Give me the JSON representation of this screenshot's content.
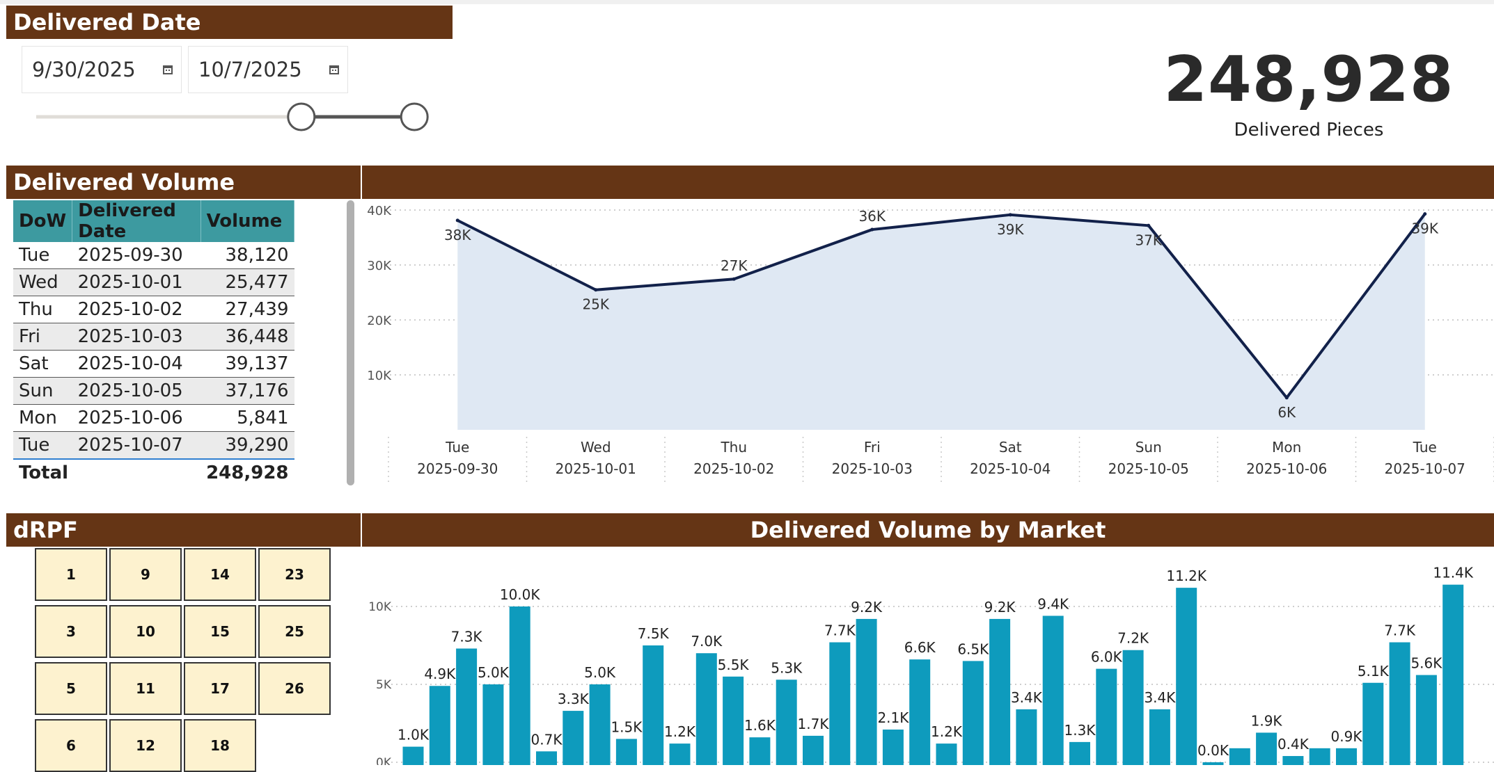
{
  "date_filter": {
    "header": "Delivered Date",
    "start": "9/30/2025",
    "end": "10/7/2025",
    "calendar_icon": "calendar-icon",
    "slider_start_fraction": 0.68,
    "slider_end_fraction": 0.97
  },
  "kpi": {
    "value": "248,928",
    "label": "Delivered Pieces"
  },
  "volume_section": {
    "header": "Delivered Volume"
  },
  "volume_table": {
    "columns": [
      "DoW",
      "Delivered Date",
      "Volume"
    ],
    "rows": [
      {
        "dow": "Tue",
        "date": "2025-09-30",
        "volume": "38,120"
      },
      {
        "dow": "Wed",
        "date": "2025-10-01",
        "volume": "25,477"
      },
      {
        "dow": "Thu",
        "date": "2025-10-02",
        "volume": "27,439"
      },
      {
        "dow": "Fri",
        "date": "2025-10-03",
        "volume": "36,448"
      },
      {
        "dow": "Sat",
        "date": "2025-10-04",
        "volume": "39,137"
      },
      {
        "dow": "Sun",
        "date": "2025-10-05",
        "volume": "37,176"
      },
      {
        "dow": "Mon",
        "date": "2025-10-06",
        "volume": "5,841"
      },
      {
        "dow": "Tue",
        "date": "2025-10-07",
        "volume": "39,290"
      }
    ],
    "total_label": "Total",
    "total_value": "248,928"
  },
  "drpf": {
    "header": "dRPF",
    "tiles": [
      "1",
      "9",
      "14",
      "23",
      "3",
      "10",
      "15",
      "25",
      "5",
      "11",
      "17",
      "26",
      "6",
      "12",
      "18"
    ]
  },
  "market_section": {
    "header": "Delivered Volume by Market"
  },
  "colors": {
    "brown": "#653515",
    "teal_header": "#3d9aa0",
    "line": "#12214a",
    "area": "#dfe8f3",
    "bar": "#0e9bbd",
    "tile": "#fdf2cf"
  },
  "chart_data": [
    {
      "type": "area",
      "x_labels": [
        "Tue",
        "Wed",
        "Thu",
        "Fri",
        "Sat",
        "Sun",
        "Mon",
        "Tue"
      ],
      "x_dates": [
        "2025-09-30",
        "2025-10-01",
        "2025-10-02",
        "2025-10-03",
        "2025-10-04",
        "2025-10-05",
        "2025-10-06",
        "2025-10-07"
      ],
      "values": [
        38120,
        25477,
        27439,
        36448,
        39137,
        37176,
        5841,
        39290
      ],
      "data_labels": [
        "38K",
        "25K",
        "27K",
        "36K",
        "39K",
        "37K",
        "6K",
        "39K"
      ],
      "label_above": [
        false,
        false,
        true,
        true,
        false,
        false,
        false,
        false
      ],
      "y_ticks": [
        "10K",
        "20K",
        "30K",
        "40K"
      ],
      "y_tick_values": [
        10000,
        20000,
        30000,
        40000
      ],
      "ylim": [
        0,
        40000
      ],
      "grid": true
    },
    {
      "type": "bar",
      "title": "Delivered Volume by Market",
      "values": [
        1.0,
        4.9,
        7.3,
        5.0,
        10.0,
        0.7,
        3.3,
        5.0,
        1.5,
        7.5,
        1.2,
        7.0,
        5.5,
        1.6,
        5.3,
        1.7,
        7.7,
        9.2,
        2.1,
        6.6,
        1.2,
        6.5,
        9.2,
        3.4,
        9.4,
        1.3,
        6.0,
        7.2,
        3.4,
        11.2,
        0.0,
        0.9,
        1.9,
        0.4,
        0.9,
        0.9,
        5.1,
        7.7,
        5.6,
        11.4
      ],
      "labels": [
        "1.0K",
        "4.9K",
        "7.3K",
        "5.0K",
        "10.0K",
        "0.7K",
        "3.3K",
        "5.0K",
        "1.5K",
        "7.5K",
        "1.2K",
        "7.0K",
        "5.5K",
        "1.6K",
        "5.3K",
        "1.7K",
        "7.7K",
        "9.2K",
        "2.1K",
        "6.6K",
        "1.2K",
        "6.5K",
        "9.2K",
        "3.4K",
        "9.4K",
        "1.3K",
        "6.0K",
        "7.2K",
        "3.4K",
        "11.2K",
        "0.0K",
        "",
        "1.9K",
        "0.4K",
        "",
        "0.9K",
        "5.1K",
        "7.7K",
        "5.6K",
        "11.4K"
      ],
      "unit": "thousands",
      "y_ticks": [
        "0K",
        "5K",
        "10K"
      ],
      "y_tick_values": [
        0,
        5,
        10
      ],
      "grid": true
    }
  ]
}
